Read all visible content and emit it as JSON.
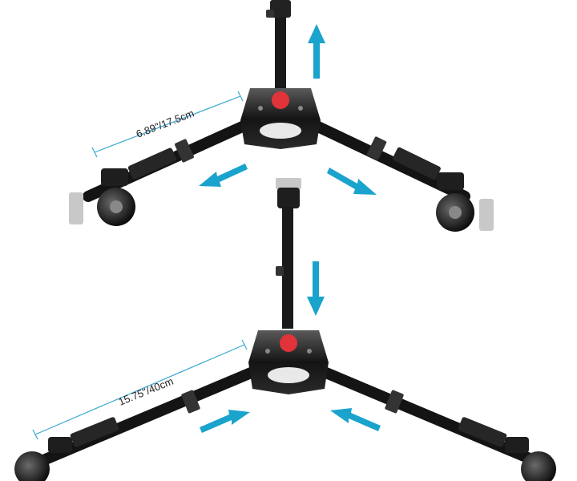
{
  "image": {
    "subject": "tripod dolly",
    "colors": {
      "metal": "#141414",
      "metal_highlight": "#5a5a5a",
      "badge": "#e0343a",
      "arrow": "#1aa3cc",
      "dimension_line": "#3aa8d0",
      "wheel_plate": "#c8c8c8"
    }
  },
  "panels": {
    "top": {
      "dimension_label": "6.89\"/17.5cm"
    },
    "bottom": {
      "dimension_label": "15.75\"/40cm"
    }
  }
}
